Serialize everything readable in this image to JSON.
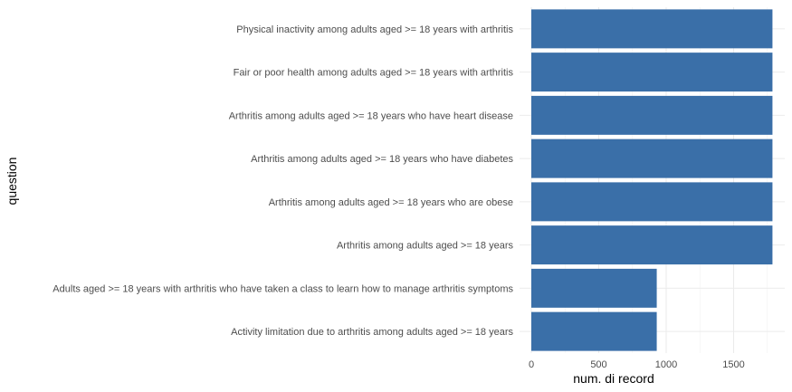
{
  "chart_data": {
    "type": "bar",
    "orientation": "horizontal",
    "categories": [
      "Physical inactivity among adults aged >= 18 years with arthritis",
      "Fair or poor health among adults aged >= 18 years with arthritis",
      "Arthritis among adults aged >= 18 years who have heart disease",
      "Arthritis among adults aged >= 18 years who have diabetes",
      "Arthritis among adults aged >= 18 years who are obese",
      "Arthritis among adults aged >= 18 years",
      "Adults aged >= 18 years with arthritis who have taken a class to learn how to manage arthritis symptoms",
      "Activity limitation due to arthritis among adults aged >= 18 years"
    ],
    "values": [
      1788,
      1788,
      1788,
      1788,
      1788,
      1788,
      930,
      930
    ],
    "xlabel": "num. di record",
    "ylabel": "question",
    "xlim": [
      0,
      1880
    ],
    "xticks": [
      0,
      500,
      1000,
      1500
    ],
    "grid": true,
    "bar_color": "#3a6fa8"
  }
}
